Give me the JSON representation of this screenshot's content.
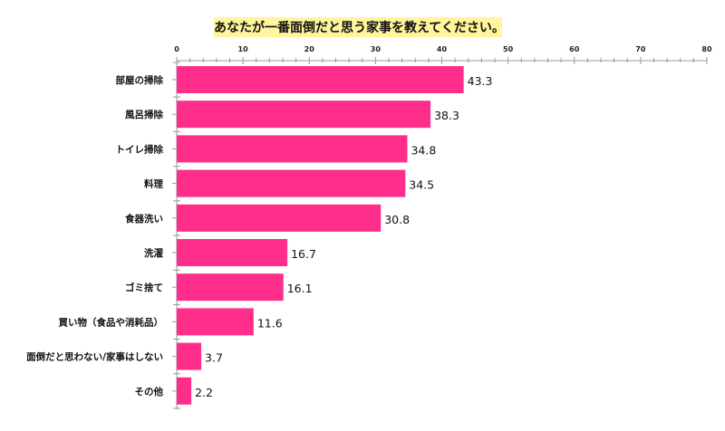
{
  "chart_data": {
    "type": "bar",
    "orientation": "horizontal",
    "title": "あなたが一番面倒だと思う家事を教えてください。",
    "categories": [
      "部屋の掃除",
      "風呂掃除",
      "トイレ掃除",
      "料理",
      "食器洗い",
      "洗濯",
      "ゴミ捨て",
      "買い物（食品や消耗品）",
      "面倒だと思わない/家事はしない",
      "その他"
    ],
    "values": [
      43.3,
      38.3,
      34.8,
      34.5,
      30.8,
      16.7,
      16.1,
      11.6,
      3.7,
      2.2
    ],
    "value_labels": [
      "43.3",
      "38.3",
      "34.8",
      "34.5",
      "30.8",
      "16.7",
      "16.1",
      "11.6",
      "3.7",
      "2.2"
    ],
    "xlim": [
      0,
      80
    ],
    "x_ticks": [
      0,
      10,
      20,
      30,
      40,
      50,
      60,
      70,
      80
    ],
    "x_tick_labels": [
      "0",
      "10",
      "20",
      "30",
      "40",
      "50",
      "60",
      "70",
      "80"
    ],
    "x_axis_position": "top",
    "grid": false,
    "legend": "none",
    "colors": {
      "bar": "#ff2e8a",
      "title_highlight": "#fff59c",
      "axis": "#999999"
    }
  }
}
